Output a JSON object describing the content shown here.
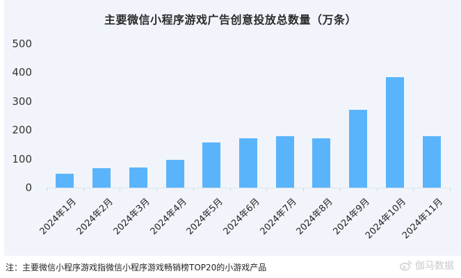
{
  "chart_data": {
    "type": "bar",
    "title": "主要微信小程序游戏广告创意投放总数量（万条）",
    "xlabel": "",
    "ylabel": "",
    "categories": [
      "2024年1月",
      "2024年2月",
      "2024年3月",
      "2024年4月",
      "2024年5月",
      "2024年6月",
      "2024年7月",
      "2024年8月",
      "2024年9月",
      "2024年10月",
      "2024年11月"
    ],
    "values": [
      48,
      68,
      70,
      97,
      158,
      172,
      178,
      172,
      271,
      384,
      179
    ],
    "ylim": [
      0,
      500
    ],
    "yticks": [
      "0",
      "100",
      "200",
      "300",
      "400",
      "500"
    ],
    "grid": false,
    "legend": null,
    "bar_color": "#5ab4fb"
  },
  "footer": {
    "note": "注：主要微信小程序游戏指微信小程序游戏畅销榜TOP20的小游戏产品",
    "watermark": "伽马数据"
  },
  "colors": {
    "panel_bg": "#f1f5fb",
    "bar": "#5ab4fb",
    "text": "#2b2b2b"
  }
}
